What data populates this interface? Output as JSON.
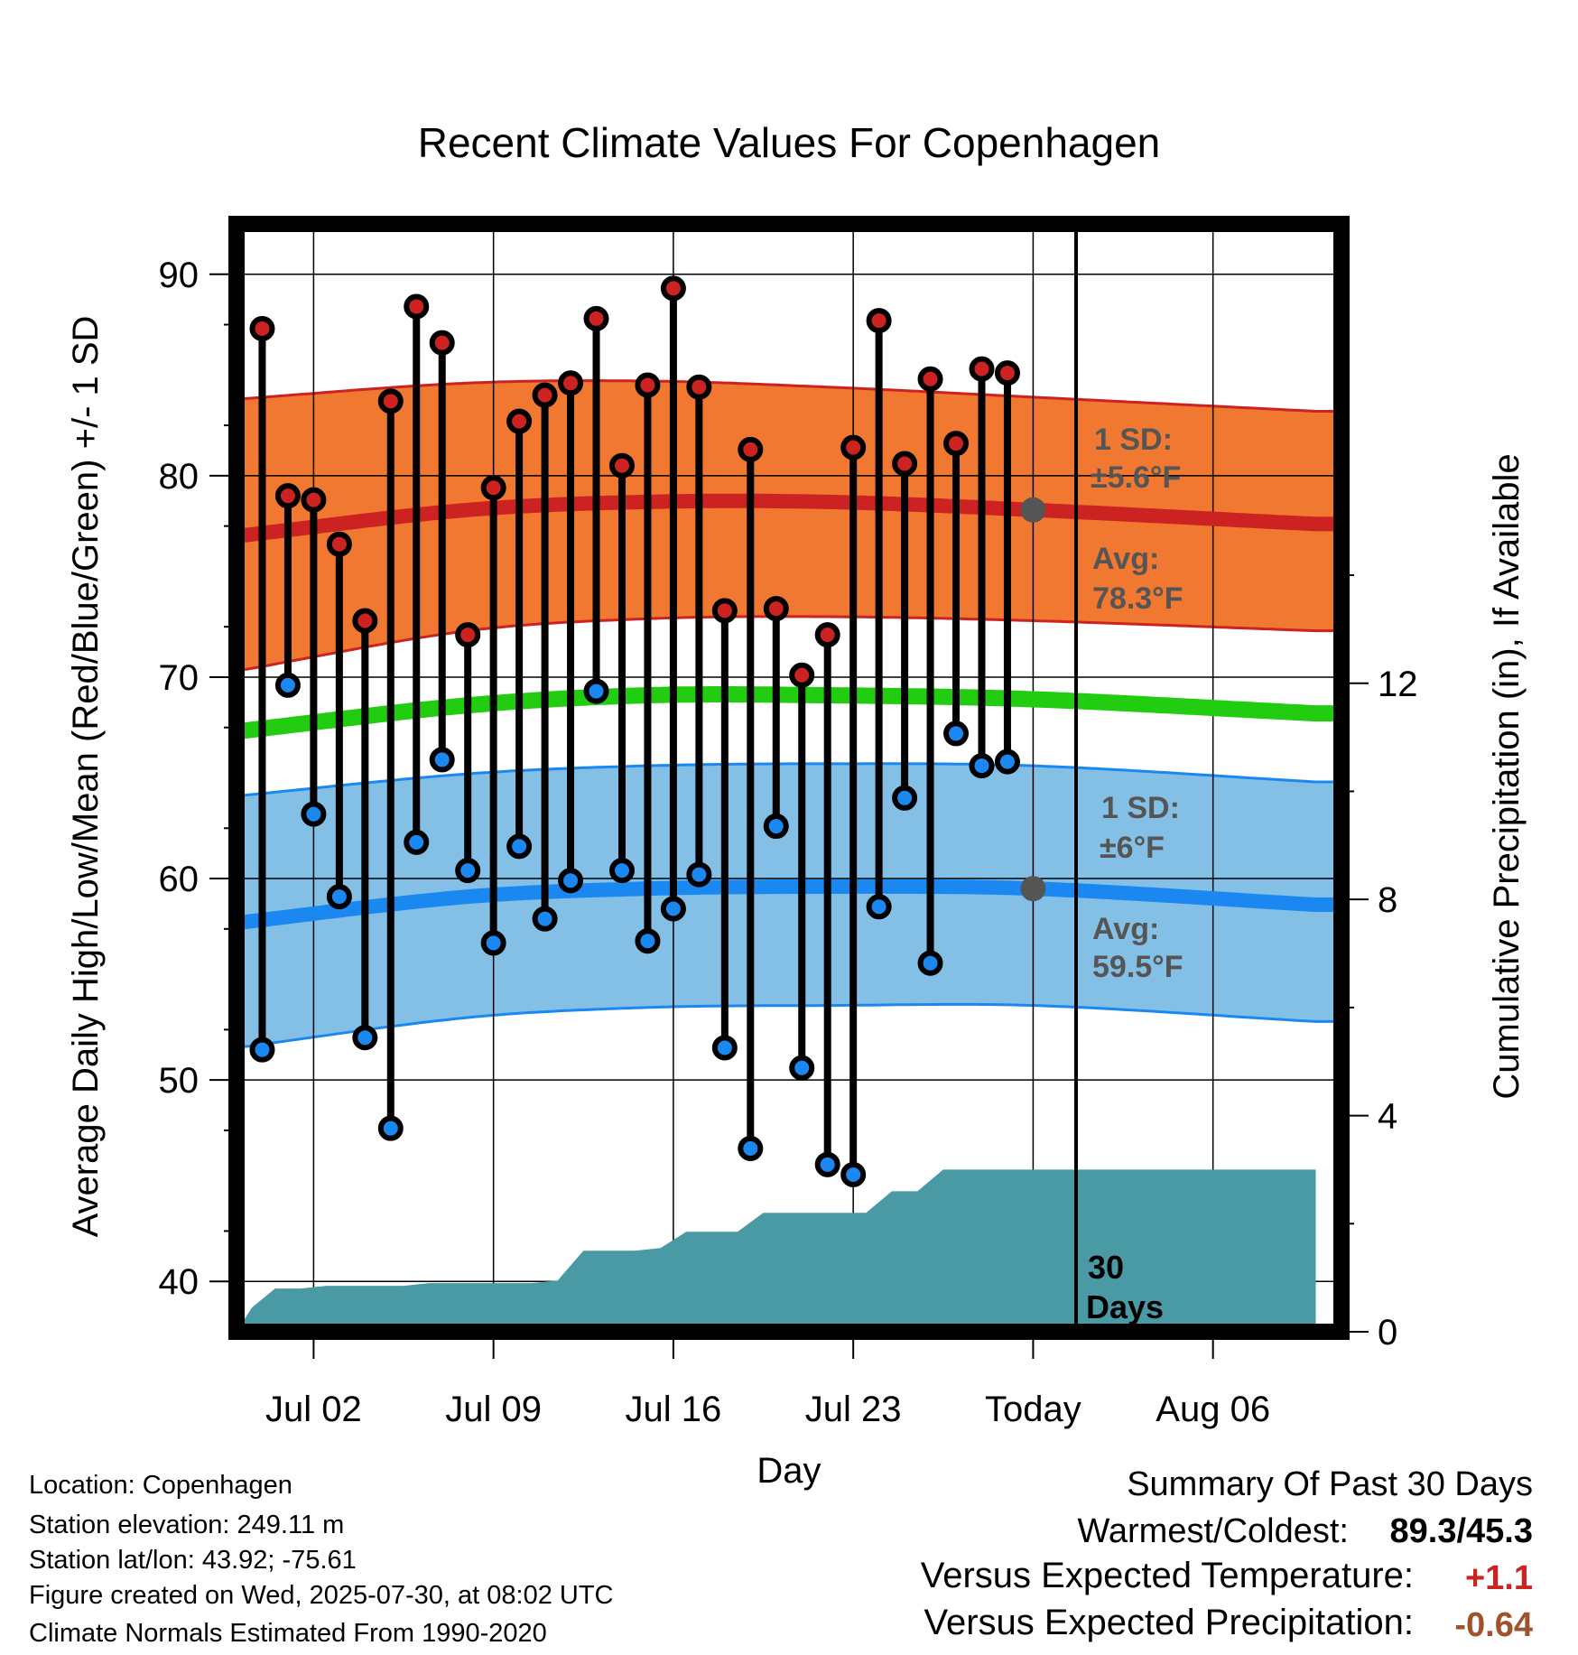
{
  "chart_data": {
    "type": "line",
    "title": "Recent Climate Values For Copenhagen",
    "xlabel": "Day",
    "ylabel_left": "Average Daily High/Low/Mean (Red/Blue/Green) +/- 1 SD",
    "ylabel_right": "Cumulative Precipitation (in), If Available",
    "ylim_left": [
      37.5,
      92.5
    ],
    "ylim_right": [
      0,
      20.5
    ],
    "yticks_left": [
      "40",
      "50",
      "60",
      "70",
      "80",
      "90"
    ],
    "yticks_right": [
      "0",
      "4",
      "8",
      "12"
    ],
    "xlim_days": [
      -1,
      42
    ],
    "xticks": [
      {
        "day": 2,
        "label": "Jul 02"
      },
      {
        "day": 9,
        "label": "Jul 09"
      },
      {
        "day": 16,
        "label": "Jul 16"
      },
      {
        "day": 23,
        "label": "Jul 23"
      },
      {
        "day": 30,
        "label": "Today"
      },
      {
        "day": 37,
        "label": "Aug 06"
      }
    ],
    "grid": true,
    "today_day": 30,
    "days": [
      0,
      1,
      2,
      3,
      4,
      5,
      6,
      7,
      8,
      9,
      10,
      11,
      12,
      13,
      14,
      15,
      16,
      17,
      18,
      19,
      20,
      21,
      22,
      23,
      24,
      25,
      26,
      27,
      28,
      29
    ],
    "highs": [
      87.3,
      79.0,
      78.8,
      76.6,
      72.8,
      83.7,
      88.4,
      86.6,
      72.1,
      79.4,
      82.7,
      84.0,
      84.6,
      87.8,
      80.5,
      84.5,
      89.3,
      84.4,
      73.3,
      81.3,
      73.4,
      70.1,
      72.1,
      81.4,
      87.7,
      80.6,
      84.8,
      81.6,
      85.3,
      85.1
    ],
    "lows": [
      51.5,
      69.6,
      63.2,
      59.1,
      52.1,
      47.6,
      61.8,
      65.9,
      60.4,
      56.8,
      61.6,
      58.0,
      59.9,
      69.3,
      60.4,
      56.9,
      58.5,
      60.2,
      51.6,
      46.6,
      62.6,
      50.6,
      45.8,
      45.3,
      58.6,
      64.0,
      55.8,
      67.2,
      65.6,
      65.8
    ],
    "normal_high": {
      "days": [
        -1,
        8,
        15,
        22,
        30,
        41
      ],
      "avg": [
        77.0,
        78.3,
        78.7,
        78.7,
        78.3,
        77.6
      ],
      "upper": [
        83.8,
        84.6,
        84.7,
        84.4,
        83.9,
        83.2
      ],
      "lower": [
        70.3,
        72.3,
        72.9,
        73.0,
        72.8,
        72.3
      ]
    },
    "normal_mean": {
      "days": [
        -1,
        8,
        15,
        22,
        30,
        41
      ],
      "values": [
        67.3,
        68.6,
        69.1,
        69.1,
        68.9,
        68.2
      ]
    },
    "normal_low": {
      "days": [
        -1,
        8,
        15,
        22,
        30,
        41
      ],
      "avg": [
        57.8,
        59.1,
        59.5,
        59.6,
        59.5,
        58.7
      ],
      "upper": [
        64.1,
        65.2,
        65.6,
        65.7,
        65.6,
        64.8
      ],
      "lower": [
        51.6,
        53.1,
        53.6,
        53.7,
        53.7,
        52.9
      ]
    },
    "precip_cumulative": {
      "days": [
        -1,
        -0.4,
        0.5,
        1.5,
        2.5,
        3.5,
        4.5,
        5.5,
        6.5,
        7.5,
        8.5,
        9.5,
        10.5,
        11.5,
        12.5,
        13.5,
        14.5,
        15.5,
        16.5,
        17.5,
        18.5,
        19.5,
        20.5,
        21.5,
        22.5,
        23.5,
        24.5,
        25.5,
        26.5,
        27.5,
        30,
        41
      ],
      "values": [
        0,
        0.45,
        0.8,
        0.8,
        0.85,
        0.85,
        0.85,
        0.85,
        0.9,
        0.9,
        0.9,
        0.9,
        0.9,
        0.95,
        1.5,
        1.5,
        1.5,
        1.55,
        1.85,
        1.85,
        1.85,
        2.2,
        2.2,
        2.2,
        2.2,
        2.2,
        2.6,
        2.6,
        3.0,
        3.0,
        3.0,
        3.0
      ]
    },
    "annotations": {
      "high_sd_label": "1 SD:",
      "high_sd_value": "±5.6°F",
      "high_avg_label": "Avg:",
      "high_avg_value": "78.3°F",
      "high_avg_today": 78.3,
      "low_sd_label": "1 SD:",
      "low_sd_value": "±6°F",
      "low_avg_label": "Avg:",
      "low_avg_value": "59.5°F",
      "low_avg_today": 59.5,
      "days_label_1": "30",
      "days_label_2": "Days"
    },
    "colors": {
      "high_band": "#f07830",
      "high_line": "#cc2222",
      "mean_line": "#22cc11",
      "low_band": "#84c0e6",
      "low_line": "#1a88f0",
      "precip": "#4a9aa6",
      "high_marker": "#cc2222",
      "low_marker": "#1a88f0"
    }
  },
  "info": {
    "location": "Location: Copenhagen",
    "elevation": "Station elevation: 249.11 m",
    "latlon": "Station lat/lon: 43.92; -75.61",
    "created": "Figure created on Wed, 2025-07-30, at 08:02 UTC",
    "normals": "Climate Normals Estimated From 1990-2020"
  },
  "summary": {
    "title": "Summary Of Past 30 Days",
    "warmest_label": "Warmest/Coldest:",
    "warmest_value": "89.3/45.3",
    "temp_label": "Versus Expected Temperature:",
    "temp_value": "+1.1",
    "temp_color": "#cc2222",
    "precip_label": "Versus Expected Precipitation:",
    "precip_value": "-0.64",
    "precip_color": "#a0522d"
  }
}
